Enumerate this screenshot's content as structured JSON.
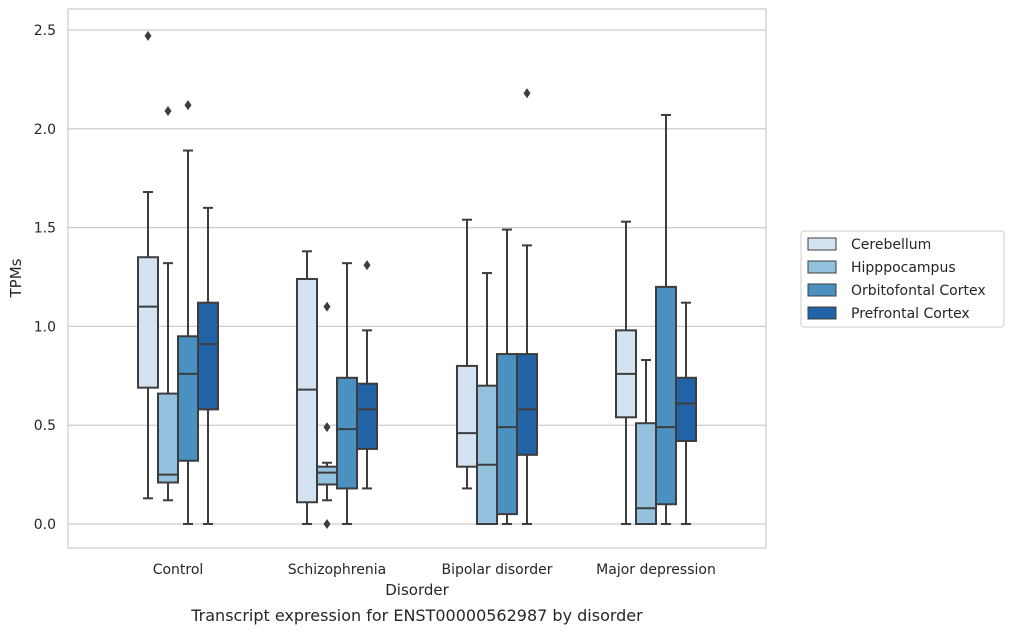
{
  "caption": "Transcript expression for ENST00000562987 by disorder",
  "chart_data": {
    "type": "box",
    "title": "",
    "xlabel": "Disorder",
    "ylabel": "TPMs",
    "ylim": [
      -0.12,
      2.6
    ],
    "yticks": [
      "0.0",
      "0.5",
      "1.0",
      "1.5",
      "2.0",
      "2.5"
    ],
    "ytick_values": [
      0,
      0.5,
      1.0,
      1.5,
      2.0,
      2.5
    ],
    "grid": "horizontal",
    "legend_position": "right",
    "categories": [
      "Control",
      "Schizophrenia",
      "Bipolar disorder",
      "Major depression"
    ],
    "series": [
      {
        "name": "Cerebellum",
        "color": "#d3e3f2",
        "boxes": [
          {
            "whislo": 0.13,
            "q1": 0.69,
            "med": 1.1,
            "q3": 1.35,
            "whishi": 1.68,
            "fliers": [
              2.47
            ]
          },
          {
            "whislo": 0.0,
            "q1": 0.11,
            "med": 0.68,
            "q3": 1.24,
            "whishi": 1.38,
            "fliers": []
          },
          {
            "whislo": 0.18,
            "q1": 0.29,
            "med": 0.46,
            "q3": 0.8,
            "whishi": 1.54,
            "fliers": []
          },
          {
            "whislo": 0.0,
            "q1": 0.54,
            "med": 0.76,
            "q3": 0.98,
            "whishi": 1.53,
            "fliers": []
          }
        ]
      },
      {
        "name": "Hipppocampus",
        "color": "#94c1dd",
        "boxes": [
          {
            "whislo": 0.12,
            "q1": 0.21,
            "med": 0.25,
            "q3": 0.66,
            "whishi": 1.32,
            "fliers": [
              2.09
            ]
          },
          {
            "whislo": 0.12,
            "q1": 0.2,
            "med": 0.26,
            "q3": 0.29,
            "whishi": 0.31,
            "fliers": [
              1.1,
              0.49,
              0.0
            ]
          },
          {
            "whislo": 0.0,
            "q1": 0.0,
            "med": 0.3,
            "q3": 0.7,
            "whishi": 1.27,
            "fliers": []
          },
          {
            "whislo": 0.0,
            "q1": 0.0,
            "med": 0.08,
            "q3": 0.51,
            "whishi": 0.83,
            "fliers": []
          }
        ]
      },
      {
        "name": "Orbitofontal Cortex",
        "color": "#4a90c1",
        "boxes": [
          {
            "whislo": 0.0,
            "q1": 0.32,
            "med": 0.76,
            "q3": 0.95,
            "whishi": 1.89,
            "fliers": [
              2.12
            ]
          },
          {
            "whislo": 0.0,
            "q1": 0.18,
            "med": 0.48,
            "q3": 0.74,
            "whishi": 1.32,
            "fliers": []
          },
          {
            "whislo": 0.0,
            "q1": 0.05,
            "med": 0.49,
            "q3": 0.86,
            "whishi": 1.49,
            "fliers": []
          },
          {
            "whislo": 0.0,
            "q1": 0.1,
            "med": 0.49,
            "q3": 1.2,
            "whishi": 2.07,
            "fliers": []
          }
        ]
      },
      {
        "name": "Prefrontal Cortex",
        "color": "#2163a6",
        "boxes": [
          {
            "whislo": 0.0,
            "q1": 0.58,
            "med": 0.91,
            "q3": 1.12,
            "whishi": 1.6,
            "fliers": []
          },
          {
            "whislo": 0.18,
            "q1": 0.38,
            "med": 0.58,
            "q3": 0.71,
            "whishi": 0.98,
            "fliers": [
              1.31
            ]
          },
          {
            "whislo": 0.0,
            "q1": 0.35,
            "med": 0.58,
            "q3": 0.86,
            "whishi": 1.41,
            "fliers": [
              2.18
            ]
          },
          {
            "whislo": 0.0,
            "q1": 0.42,
            "med": 0.61,
            "q3": 0.74,
            "whishi": 1.12,
            "fliers": []
          }
        ]
      }
    ]
  }
}
